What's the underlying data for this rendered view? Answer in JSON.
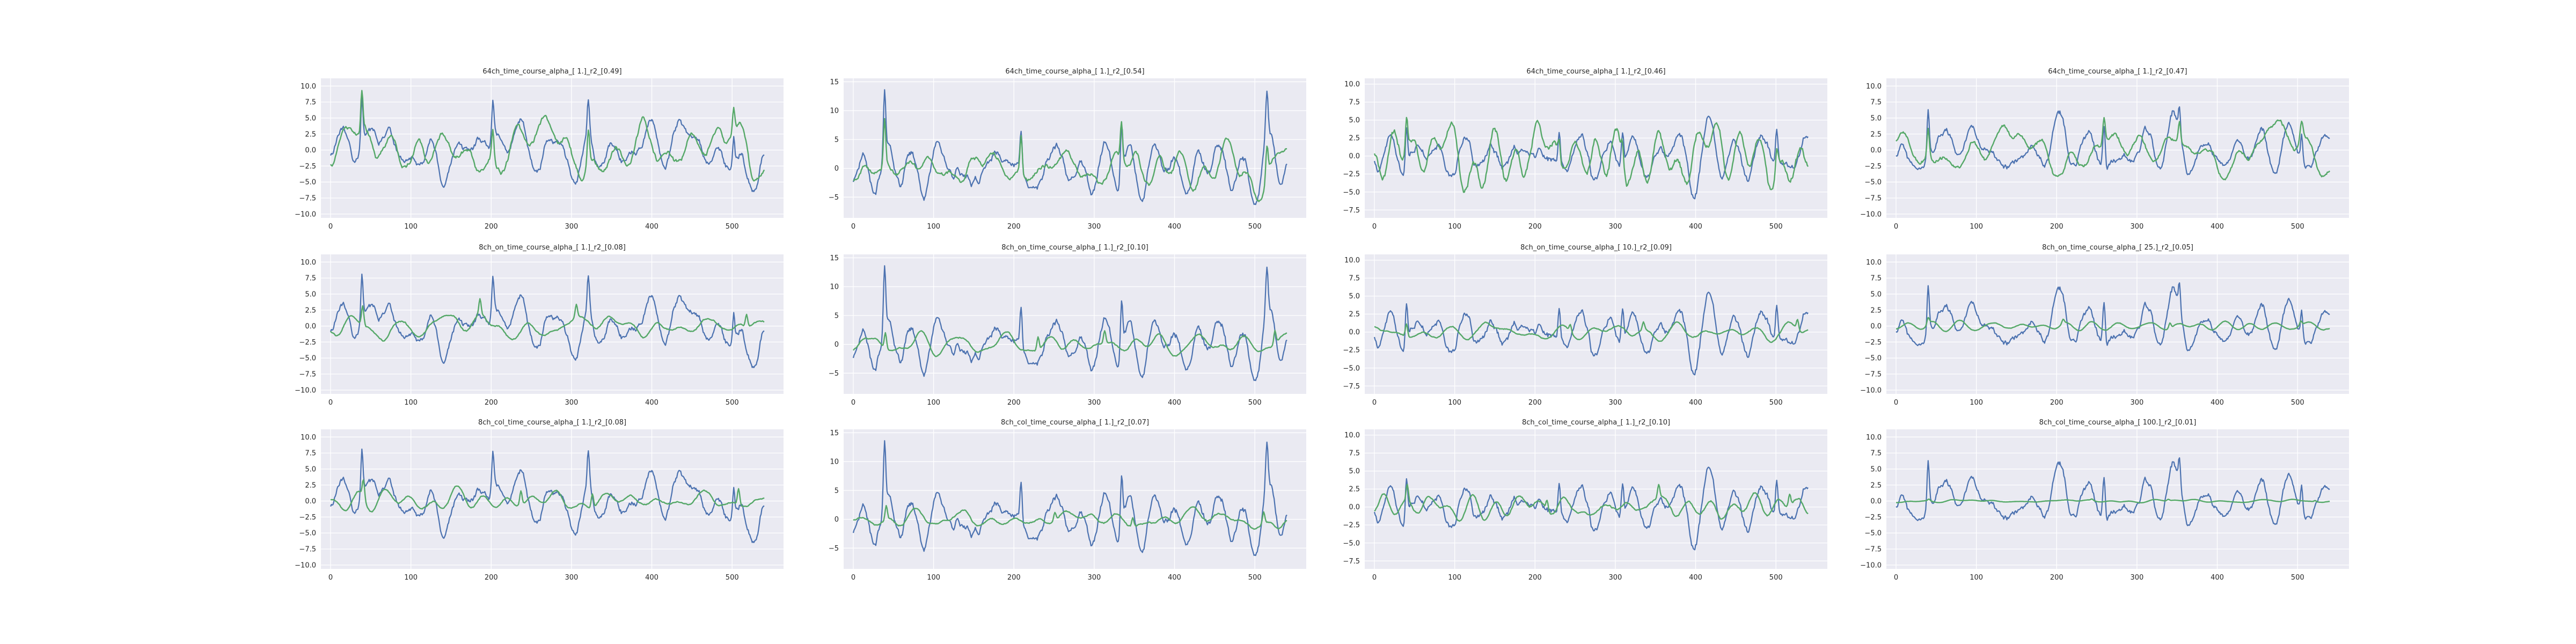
{
  "figure": {
    "background": "#ffffff",
    "panel_background": "#eaeaf2",
    "grid_color": "#ffffff",
    "tick_label_color": "#262626",
    "series_colors": [
      "#4c72b0",
      "#55a868"
    ]
  },
  "chart_data": [
    {
      "type": "line",
      "row": 0,
      "col": 0,
      "title": "64ch_time_course_alpha_[ 1.]_r2_[0.49]",
      "xlim": [
        -12,
        564
      ],
      "ylim": [
        -10.6,
        11.2
      ],
      "xticks": [
        0,
        100,
        200,
        300,
        400,
        500
      ],
      "yticks": [
        -10.0,
        -7.5,
        -5.0,
        -2.5,
        0.0,
        2.5,
        5.0,
        7.5,
        10.0
      ],
      "ytick_labels": [
        "−10.0",
        "−7.5",
        "−5.0",
        "−2.5",
        "0.0",
        "2.5",
        "5.0",
        "7.5",
        "10.0"
      ],
      "grid": true,
      "n_points": 541,
      "x": {
        "start": 0,
        "end": 540
      },
      "series": [
        {
          "color": "#4c72b0",
          "amplitude": 3.6,
          "seed": 11,
          "spike": 10.2,
          "smooth": 1.6
        },
        {
          "color": "#55a868",
          "amplitude": 3.0,
          "seed": 11,
          "spike": 9.0,
          "smooth": 3.0
        }
      ]
    },
    {
      "type": "line",
      "row": 0,
      "col": 1,
      "title": "64ch_time_course_alpha_[ 1.]_r2_[0.54]",
      "xlim": [
        -12,
        564
      ],
      "ylim": [
        -8.6,
        15.6
      ],
      "xticks": [
        0,
        100,
        200,
        300,
        400,
        500
      ],
      "yticks": [
        -5,
        0,
        5,
        10,
        15
      ],
      "ytick_labels": [
        "−5",
        "0",
        "5",
        "10",
        "15"
      ],
      "grid": true,
      "n_points": 541,
      "x": {
        "start": 0,
        "end": 540
      },
      "series": [
        {
          "color": "#4c72b0",
          "amplitude": 3.8,
          "seed": 23,
          "spike": 14.2,
          "smooth": 1.6
        },
        {
          "color": "#55a868",
          "amplitude": 3.2,
          "seed": 23,
          "spike": 11.5,
          "smooth": 3.0
        }
      ]
    },
    {
      "type": "line",
      "row": 0,
      "col": 2,
      "title": "64ch_time_course_alpha_[ 1.]_r2_[0.46]",
      "xlim": [
        -12,
        564
      ],
      "ylim": [
        -8.6,
        10.8
      ],
      "xticks": [
        0,
        100,
        200,
        300,
        400,
        500
      ],
      "yticks": [
        -7.5,
        -5.0,
        -2.5,
        0.0,
        2.5,
        5.0,
        7.5,
        10.0
      ],
      "ytick_labels": [
        "−7.5",
        "−5.0",
        "−2.5",
        "0.0",
        "2.5",
        "5.0",
        "7.5",
        "10.0"
      ],
      "grid": true,
      "n_points": 541,
      "x": {
        "start": 0,
        "end": 540
      },
      "series": [
        {
          "color": "#4c72b0",
          "amplitude": 3.3,
          "seed": 37,
          "spike": 9.4,
          "smooth": 1.6
        },
        {
          "color": "#55a868",
          "amplitude": 2.8,
          "seed": 37,
          "spike": 6.0,
          "smooth": 3.0
        }
      ]
    },
    {
      "type": "line",
      "row": 0,
      "col": 3,
      "title": "64ch_time_course_alpha_[ 1.]_r2_[0.47]",
      "xlim": [
        -12,
        564
      ],
      "ylim": [
        -10.6,
        11.2
      ],
      "xticks": [
        0,
        100,
        200,
        300,
        400,
        500
      ],
      "yticks": [
        -10.0,
        -7.5,
        -5.0,
        -2.5,
        0.0,
        2.5,
        5.0,
        7.5,
        10.0
      ],
      "ytick_labels": [
        "−10.0",
        "−7.5",
        "−5.0",
        "−2.5",
        "0.0",
        "2.5",
        "5.0",
        "7.5",
        "10.0"
      ],
      "grid": true,
      "n_points": 541,
      "x": {
        "start": 0,
        "end": 540
      },
      "series": [
        {
          "color": "#4c72b0",
          "amplitude": 3.4,
          "seed": 41,
          "spike": 10.0,
          "smooth": 1.6
        },
        {
          "color": "#55a868",
          "amplitude": 2.6,
          "seed": 41,
          "spike": 6.5,
          "smooth": 3.0
        }
      ]
    },
    {
      "type": "line",
      "row": 1,
      "col": 0,
      "title": "8ch_on_time_course_alpha_[ 1.]_r2_[0.08]",
      "xlim": [
        -12,
        564
      ],
      "ylim": [
        -10.6,
        11.2
      ],
      "xticks": [
        0,
        100,
        200,
        300,
        400,
        500
      ],
      "yticks": [
        -10.0,
        -7.5,
        -5.0,
        -2.5,
        0.0,
        2.5,
        5.0,
        7.5,
        10.0
      ],
      "ytick_labels": [
        "−10.0",
        "−7.5",
        "−5.0",
        "−2.5",
        "0.0",
        "2.5",
        "5.0",
        "7.5",
        "10.0"
      ],
      "grid": true,
      "n_points": 541,
      "x": {
        "start": 0,
        "end": 540
      },
      "series": [
        {
          "color": "#4c72b0",
          "amplitude": 3.6,
          "seed": 11,
          "spike": 10.2,
          "smooth": 1.6
        },
        {
          "color": "#55a868",
          "amplitude": 1.3,
          "seed": 53,
          "spike": 4.2,
          "smooth": 3.5
        }
      ]
    },
    {
      "type": "line",
      "row": 1,
      "col": 1,
      "title": "8ch_on_time_course_alpha_[ 1.]_r2_[0.10]",
      "xlim": [
        -12,
        564
      ],
      "ylim": [
        -8.6,
        15.6
      ],
      "xticks": [
        0,
        100,
        200,
        300,
        400,
        500
      ],
      "yticks": [
        -5,
        0,
        5,
        10,
        15
      ],
      "ytick_labels": [
        "−5",
        "0",
        "5",
        "10",
        "15"
      ],
      "grid": true,
      "n_points": 541,
      "x": {
        "start": 0,
        "end": 540
      },
      "series": [
        {
          "color": "#4c72b0",
          "amplitude": 3.8,
          "seed": 23,
          "spike": 14.2,
          "smooth": 1.6
        },
        {
          "color": "#55a868",
          "amplitude": 1.3,
          "seed": 59,
          "spike": 4.0,
          "smooth": 3.5
        }
      ]
    },
    {
      "type": "line",
      "row": 1,
      "col": 2,
      "title": "8ch_on_time_course_alpha_[ 10.]_r2_[0.09]",
      "xlim": [
        -12,
        564
      ],
      "ylim": [
        -8.6,
        10.8
      ],
      "xticks": [
        0,
        100,
        200,
        300,
        400,
        500
      ],
      "yticks": [
        -7.5,
        -5.0,
        -2.5,
        0.0,
        2.5,
        5.0,
        7.5,
        10.0
      ],
      "ytick_labels": [
        "−7.5",
        "−5.0",
        "−2.5",
        "0.0",
        "2.5",
        "5.0",
        "7.5",
        "10.0"
      ],
      "grid": true,
      "n_points": 541,
      "x": {
        "start": 0,
        "end": 540
      },
      "series": [
        {
          "color": "#4c72b0",
          "amplitude": 3.3,
          "seed": 37,
          "spike": 9.4,
          "smooth": 1.6
        },
        {
          "color": "#55a868",
          "amplitude": 0.8,
          "seed": 61,
          "spike": 2.5,
          "smooth": 4.0
        }
      ]
    },
    {
      "type": "line",
      "row": 1,
      "col": 3,
      "title": "8ch_on_time_course_alpha_[ 25.]_r2_[0.05]",
      "xlim": [
        -12,
        564
      ],
      "ylim": [
        -10.6,
        11.2
      ],
      "xticks": [
        0,
        100,
        200,
        300,
        400,
        500
      ],
      "yticks": [
        -10.0,
        -7.5,
        -5.0,
        -2.5,
        0.0,
        2.5,
        5.0,
        7.5,
        10.0
      ],
      "ytick_labels": [
        "−10.0",
        "−7.5",
        "−5.0",
        "−2.5",
        "0.0",
        "2.5",
        "5.0",
        "7.5",
        "10.0"
      ],
      "grid": true,
      "n_points": 541,
      "x": {
        "start": 0,
        "end": 540
      },
      "series": [
        {
          "color": "#4c72b0",
          "amplitude": 3.4,
          "seed": 41,
          "spike": 10.0,
          "smooth": 1.6
        },
        {
          "color": "#55a868",
          "amplitude": 0.5,
          "seed": 67,
          "spike": 1.5,
          "smooth": 4.5
        }
      ]
    },
    {
      "type": "line",
      "row": 2,
      "col": 0,
      "title": "8ch_col_time_course_alpha_[ 1.]_r2_[0.08]",
      "xlim": [
        -12,
        564
      ],
      "ylim": [
        -10.6,
        11.2
      ],
      "xticks": [
        0,
        100,
        200,
        300,
        400,
        500
      ],
      "yticks": [
        -10.0,
        -7.5,
        -5.0,
        -2.5,
        0.0,
        2.5,
        5.0,
        7.5,
        10.0
      ],
      "ytick_labels": [
        "−10.0",
        "−7.5",
        "−5.0",
        "−2.5",
        "0.0",
        "2.5",
        "5.0",
        "7.5",
        "10.0"
      ],
      "grid": true,
      "n_points": 541,
      "x": {
        "start": 0,
        "end": 540
      },
      "series": [
        {
          "color": "#4c72b0",
          "amplitude": 3.6,
          "seed": 11,
          "spike": 10.2,
          "smooth": 1.6
        },
        {
          "color": "#55a868",
          "amplitude": 1.3,
          "seed": 71,
          "spike": 4.0,
          "smooth": 3.5
        }
      ]
    },
    {
      "type": "line",
      "row": 2,
      "col": 1,
      "title": "8ch_col_time_course_alpha_[ 1.]_r2_[0.07]",
      "xlim": [
        -12,
        564
      ],
      "ylim": [
        -8.6,
        15.6
      ],
      "xticks": [
        0,
        100,
        200,
        300,
        400,
        500
      ],
      "yticks": [
        -5,
        0,
        5,
        10,
        15
      ],
      "ytick_labels": [
        "−5",
        "0",
        "5",
        "10",
        "15"
      ],
      "grid": true,
      "n_points": 541,
      "x": {
        "start": 0,
        "end": 540
      },
      "series": [
        {
          "color": "#4c72b0",
          "amplitude": 3.8,
          "seed": 23,
          "spike": 14.2,
          "smooth": 1.6
        },
        {
          "color": "#55a868",
          "amplitude": 1.2,
          "seed": 73,
          "spike": 3.5,
          "smooth": 3.5
        }
      ]
    },
    {
      "type": "line",
      "row": 2,
      "col": 2,
      "title": "8ch_col_time_course_alpha_[ 1.]_r2_[0.10]",
      "xlim": [
        -12,
        564
      ],
      "ylim": [
        -8.6,
        10.8
      ],
      "xticks": [
        0,
        100,
        200,
        300,
        400,
        500
      ],
      "yticks": [
        -7.5,
        -5.0,
        -2.5,
        0.0,
        2.5,
        5.0,
        7.5,
        10.0
      ],
      "ytick_labels": [
        "−7.5",
        "−5.0",
        "−2.5",
        "0.0",
        "2.5",
        "5.0",
        "7.5",
        "10.0"
      ],
      "grid": true,
      "n_points": 541,
      "x": {
        "start": 0,
        "end": 540
      },
      "series": [
        {
          "color": "#4c72b0",
          "amplitude": 3.3,
          "seed": 37,
          "spike": 9.4,
          "smooth": 1.6
        },
        {
          "color": "#55a868",
          "amplitude": 1.1,
          "seed": 79,
          "spike": 3.2,
          "smooth": 3.5
        }
      ]
    },
    {
      "type": "line",
      "row": 2,
      "col": 3,
      "title": "8ch_col_time_course_alpha_[ 100.]_r2_[0.01]",
      "xlim": [
        -12,
        564
      ],
      "ylim": [
        -10.6,
        11.2
      ],
      "xticks": [
        0,
        100,
        200,
        300,
        400,
        500
      ],
      "yticks": [
        -10.0,
        -7.5,
        -5.0,
        -2.5,
        0.0,
        2.5,
        5.0,
        7.5,
        10.0
      ],
      "ytick_labels": [
        "−10.0",
        "−7.5",
        "−5.0",
        "−2.5",
        "0.0",
        "2.5",
        "5.0",
        "7.5",
        "10.0"
      ],
      "grid": true,
      "n_points": 541,
      "x": {
        "start": 0,
        "end": 540
      },
      "series": [
        {
          "color": "#4c72b0",
          "amplitude": 3.4,
          "seed": 41,
          "spike": 10.0,
          "smooth": 1.6
        },
        {
          "color": "#55a868",
          "amplitude": 0.15,
          "seed": 83,
          "spike": 0.4,
          "smooth": 5.0
        }
      ]
    }
  ]
}
